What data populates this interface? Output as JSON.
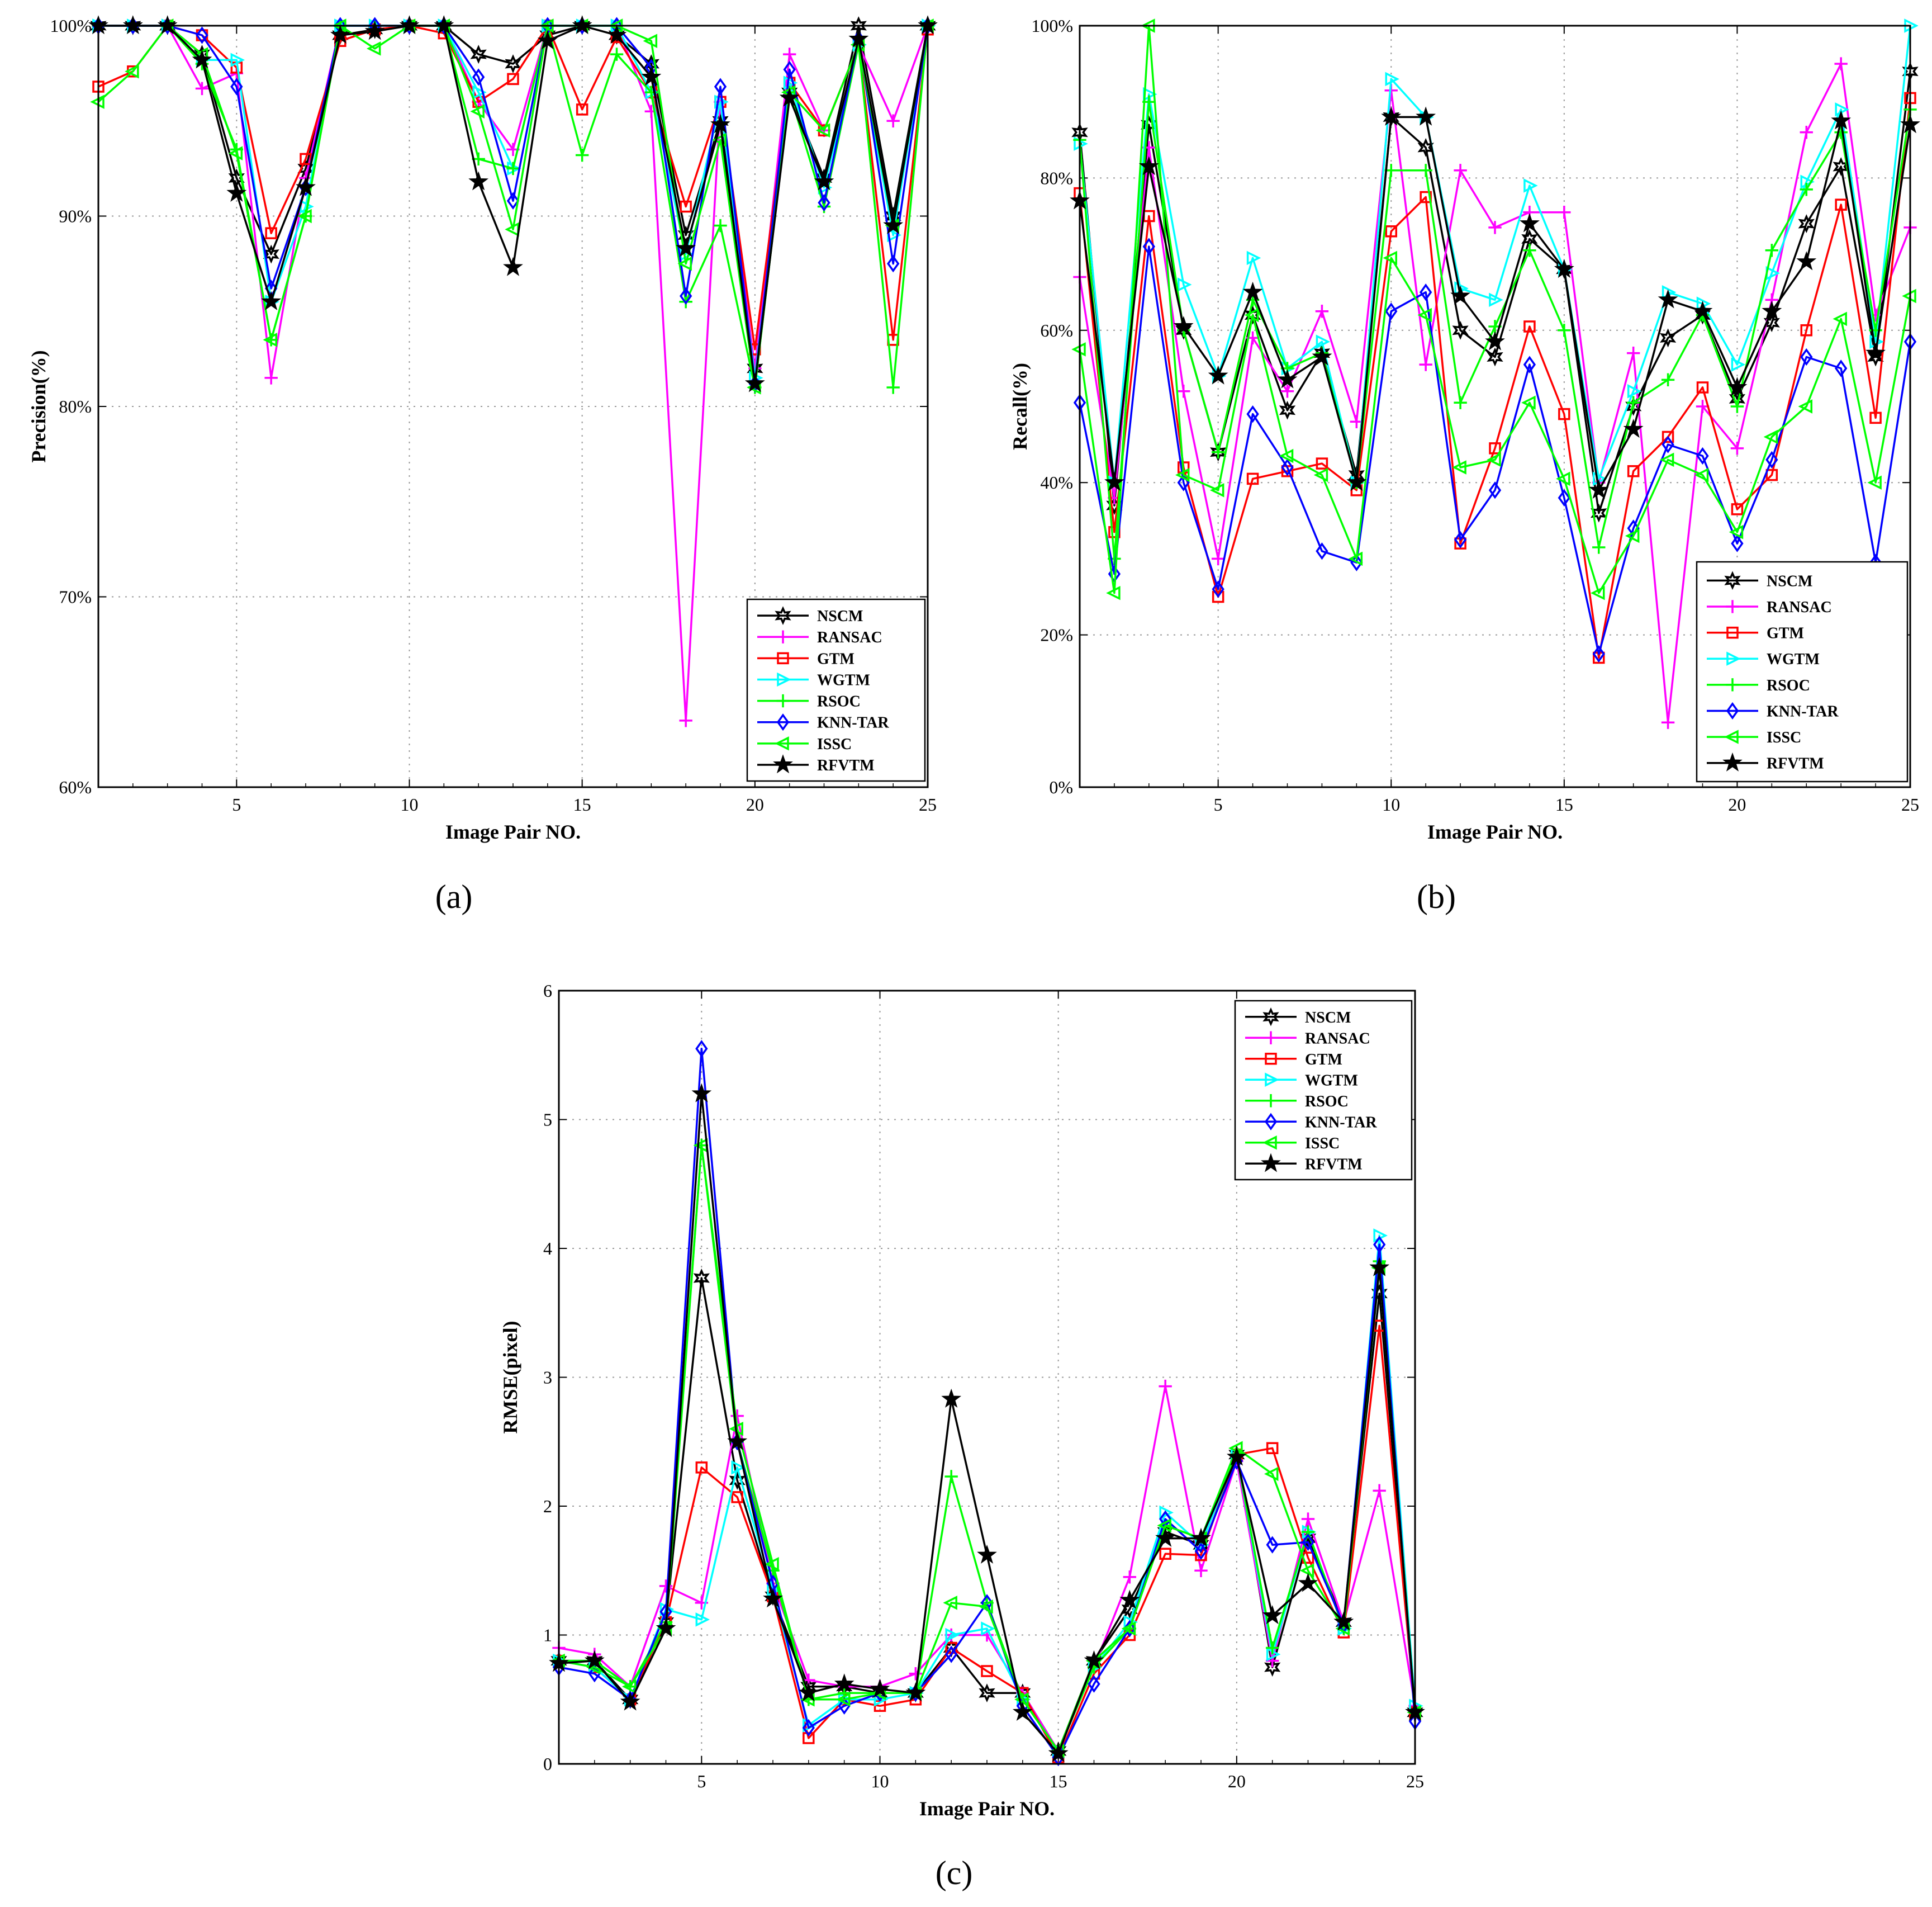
{
  "colors": {
    "NSCM": "#000000",
    "RANSAC": "#ff00ff",
    "GTM": "#ff0000",
    "WGTM": "#00ffff",
    "RSOC": "#00ff00",
    "KNN-TAR": "#0000ff",
    "ISSC": "#00ff00",
    "RFVTM": "#000000"
  },
  "chart_data": [
    {
      "type": "line",
      "panel_label": "(a)",
      "title": "",
      "xlabel": "Image Pair NO.",
      "ylabel": "Precision(%)",
      "xlim": [
        1,
        25
      ],
      "ylim": [
        60,
        100
      ],
      "xticks": [
        5,
        10,
        15,
        20,
        25
      ],
      "yticks": [
        60,
        70,
        80,
        90,
        100
      ],
      "ytick_labels": [
        "60%",
        "70%",
        "80%",
        "90%",
        "100%"
      ],
      "legend_position": "bottom-right",
      "x": [
        1,
        2,
        3,
        4,
        5,
        6,
        7,
        8,
        9,
        10,
        11,
        12,
        13,
        14,
        15,
        16,
        17,
        18,
        19,
        20,
        21,
        22,
        23,
        24,
        25
      ],
      "series": [
        {
          "name": "NSCM",
          "marker": "hexstar",
          "values": [
            100,
            100,
            100,
            98.5,
            92,
            88,
            92.5,
            99.5,
            99.8,
            100,
            100,
            98.5,
            98,
            99.5,
            100,
            99.5,
            98,
            89,
            95,
            82,
            96.5,
            92,
            100,
            90,
            100
          ]
        },
        {
          "name": "RANSAC",
          "marker": "plus",
          "values": [
            100,
            100,
            100,
            96.7,
            97.5,
            81.5,
            92,
            100,
            100,
            100,
            100,
            96,
            93.5,
            100,
            100,
            100,
            95.5,
            63.5,
            96,
            82,
            98.5,
            94.5,
            99,
            95,
            100
          ]
        },
        {
          "name": "GTM",
          "marker": "square",
          "values": [
            96.8,
            97.6,
            100,
            99.5,
            97.8,
            89.1,
            93,
            99.2,
            99.8,
            100,
            99.6,
            96,
            97.2,
            100,
            95.6,
            99.4,
            96.5,
            90.5,
            96,
            83,
            97,
            94.5,
            99,
            83.5,
            99.8
          ]
        },
        {
          "name": "WGTM",
          "marker": "triright",
          "values": [
            100,
            100,
            100,
            98.2,
            98.2,
            85.5,
            90.5,
            100,
            100,
            100,
            100,
            96.5,
            92.5,
            100,
            100,
            100,
            96.5,
            88,
            96,
            81.5,
            97,
            91.5,
            99,
            89,
            100
          ]
        },
        {
          "name": "RSOC",
          "marker": "plus",
          "values": [
            100,
            100,
            100,
            98,
            93.5,
            83.5,
            90,
            100,
            100,
            100,
            100,
            93,
            92.5,
            100,
            93.2,
            98.5,
            96.5,
            85.5,
            89.5,
            81,
            96.5,
            90.5,
            99,
            81,
            100
          ]
        },
        {
          "name": "KNN-TAR",
          "marker": "diamond",
          "values": [
            100,
            100,
            100,
            99.5,
            96.8,
            86.2,
            91.5,
            100,
            100,
            100,
            100,
            97.3,
            90.8,
            100,
            100,
            100,
            97.8,
            85.8,
            96.8,
            81.2,
            97.7,
            90.7,
            99.3,
            87.5,
            100
          ]
        },
        {
          "name": "ISSC",
          "marker": "trileft",
          "values": [
            96,
            97.6,
            100,
            98.5,
            93.3,
            83.5,
            90,
            100,
            98.8,
            100,
            100,
            95.5,
            89.3,
            100,
            100,
            100,
            99.2,
            87.5,
            94,
            81,
            96.5,
            94.5,
            99,
            89.5,
            100
          ]
        },
        {
          "name": "RFVTM",
          "marker": "star",
          "values": [
            100,
            100,
            100,
            98.2,
            91.2,
            85.5,
            91.5,
            99.5,
            99.7,
            100,
            100,
            91.8,
            87.3,
            99.2,
            100,
            99.5,
            97.3,
            88.3,
            94.8,
            81.2,
            96.2,
            91.8,
            99.3,
            89.5,
            100
          ]
        }
      ]
    },
    {
      "type": "line",
      "panel_label": "(b)",
      "title": "",
      "xlabel": "Image Pair NO.",
      "ylabel": "Recall(%)",
      "xlim": [
        1,
        25
      ],
      "ylim": [
        0,
        100
      ],
      "xticks": [
        5,
        10,
        15,
        20,
        25
      ],
      "yticks": [
        0,
        20,
        40,
        60,
        80,
        100
      ],
      "ytick_labels": [
        "0%",
        "20%",
        "40%",
        "60%",
        "80%",
        "100%"
      ],
      "legend_position": "bottom-right",
      "x": [
        1,
        2,
        3,
        4,
        5,
        6,
        7,
        8,
        9,
        10,
        11,
        12,
        13,
        14,
        15,
        16,
        17,
        18,
        19,
        20,
        21,
        22,
        23,
        24,
        25
      ],
      "series": [
        {
          "name": "NSCM",
          "marker": "hexstar",
          "values": [
            86,
            37,
            87,
            60,
            44,
            62,
            49.5,
            57,
            41,
            88,
            84,
            60,
            56.5,
            72,
            68,
            36,
            50,
            59,
            62,
            51,
            61,
            74,
            81.5,
            56.5,
            94
          ]
        },
        {
          "name": "RANSAC",
          "marker": "plus",
          "values": [
            67,
            38,
            84,
            52,
            30,
            59,
            52,
            62.5,
            48,
            91.5,
            55.5,
            81,
            73.5,
            75.5,
            75.5,
            40,
            57,
            8.5,
            50,
            44.5,
            64,
            86,
            95,
            62,
            73.5
          ]
        },
        {
          "name": "GTM",
          "marker": "square",
          "values": [
            78,
            33.5,
            75,
            42,
            25,
            40.5,
            41.5,
            42.5,
            39,
            73,
            77.5,
            32,
            44.5,
            60.5,
            49,
            17,
            41.5,
            46,
            52.5,
            36.5,
            41,
            60,
            76.5,
            48.5,
            90.5
          ]
        },
        {
          "name": "WGTM",
          "marker": "triright",
          "values": [
            84.5,
            40,
            91,
            66,
            54,
            69.5,
            55,
            58.5,
            40,
            93,
            88,
            65.5,
            64,
            79,
            68,
            40.5,
            52,
            65,
            63.5,
            55.5,
            67.5,
            79.5,
            89,
            58.5,
            100
          ]
        },
        {
          "name": "RSOC",
          "marker": "plus",
          "values": [
            85,
            30,
            90,
            60,
            44,
            64,
            55,
            57,
            40,
            81,
            81,
            50.5,
            60.5,
            70.5,
            60,
            31.5,
            50.5,
            53.5,
            62,
            50,
            70.5,
            78.5,
            86,
            60,
            89
          ]
        },
        {
          "name": "KNN-TAR",
          "marker": "diamond",
          "values": [
            50.5,
            28,
            71,
            40,
            26,
            49,
            42,
            31,
            29.5,
            62.5,
            65,
            32.5,
            39,
            55.5,
            38,
            17.5,
            34,
            45,
            43.5,
            32,
            43,
            56.5,
            55,
            29.5,
            58.5
          ]
        },
        {
          "name": "ISSC",
          "marker": "trileft",
          "values": [
            57.5,
            25.5,
            100,
            41,
            39,
            62,
            43.5,
            41,
            30,
            69.5,
            62,
            42,
            43,
            50.5,
            40.5,
            25.5,
            33,
            43,
            41,
            33.5,
            46,
            50,
            61.5,
            40,
            64.5
          ]
        },
        {
          "name": "RFVTM",
          "marker": "star",
          "values": [
            77,
            40,
            81.5,
            60.5,
            54,
            65,
            53.5,
            56.5,
            40,
            88,
            88,
            64.5,
            58.5,
            74,
            68,
            39,
            47,
            64,
            62.5,
            52.5,
            62.5,
            69,
            87.5,
            57,
            87
          ]
        }
      ]
    },
    {
      "type": "line",
      "panel_label": "(c)",
      "title": "",
      "xlabel": "Image Pair NO.",
      "ylabel": "RMSE(pixel)",
      "xlim": [
        1,
        25
      ],
      "ylim": [
        0,
        6
      ],
      "xticks": [
        5,
        10,
        15,
        20,
        25
      ],
      "yticks": [
        0,
        1,
        2,
        3,
        4,
        5,
        6
      ],
      "ytick_labels": [
        "0",
        "1",
        "2",
        "3",
        "4",
        "5",
        "6"
      ],
      "legend_position": "top-right",
      "x": [
        1,
        2,
        3,
        4,
        5,
        6,
        7,
        8,
        9,
        10,
        11,
        12,
        13,
        14,
        15,
        16,
        17,
        18,
        19,
        20,
        21,
        22,
        23,
        24,
        25
      ],
      "series": [
        {
          "name": "NSCM",
          "marker": "hexstar",
          "values": [
            0.8,
            0.8,
            0.5,
            1.1,
            3.77,
            2.2,
            1.3,
            0.6,
            0.6,
            0.55,
            0.55,
            0.9,
            0.55,
            0.55,
            0.1,
            0.8,
            1.2,
            1.8,
            1.7,
            2.4,
            0.75,
            1.75,
            1.1,
            3.65,
            0.4
          ]
        },
        {
          "name": "RANSAC",
          "marker": "plus",
          "values": [
            0.9,
            0.85,
            0.6,
            1.38,
            1.25,
            2.7,
            1.4,
            0.65,
            0.6,
            0.6,
            0.7,
            1.0,
            1.0,
            0.55,
            0.1,
            0.75,
            1.45,
            2.93,
            1.5,
            2.35,
            0.8,
            1.9,
            1.1,
            2.12,
            0.45
          ]
        },
        {
          "name": "GTM",
          "marker": "square",
          "values": [
            0.8,
            0.75,
            0.5,
            1.1,
            2.3,
            2.07,
            1.3,
            0.2,
            0.5,
            0.45,
            0.5,
            0.9,
            0.72,
            0.55,
            0.05,
            0.7,
            1.0,
            1.63,
            1.62,
            2.4,
            2.45,
            1.6,
            1.02,
            3.4,
            0.4
          ]
        },
        {
          "name": "WGTM",
          "marker": "triright",
          "values": [
            0.8,
            0.75,
            0.5,
            1.2,
            1.12,
            2.3,
            1.35,
            0.3,
            0.5,
            0.5,
            0.55,
            1.0,
            1.05,
            0.5,
            0.1,
            0.75,
            1.1,
            1.95,
            1.7,
            2.4,
            0.85,
            1.8,
            1.05,
            4.1,
            0.45
          ]
        },
        {
          "name": "RSOC",
          "marker": "plus",
          "values": [
            0.8,
            0.8,
            0.6,
            1.1,
            4.8,
            2.5,
            1.5,
            0.5,
            0.55,
            0.55,
            0.55,
            2.23,
            1.25,
            0.5,
            0.1,
            0.75,
            1.05,
            1.85,
            1.75,
            2.4,
            0.9,
            1.8,
            1.05,
            3.9,
            0.4
          ]
        },
        {
          "name": "KNN-TAR",
          "marker": "diamond",
          "values": [
            0.75,
            0.7,
            0.5,
            1.18,
            5.55,
            2.5,
            1.4,
            0.28,
            0.45,
            0.55,
            0.55,
            0.85,
            1.25,
            0.45,
            0.05,
            0.62,
            1.05,
            1.9,
            1.65,
            2.35,
            1.7,
            1.72,
            1.08,
            4.03,
            0.33
          ]
        },
        {
          "name": "ISSC",
          "marker": "trileft",
          "values": [
            0.8,
            0.75,
            0.6,
            1.05,
            4.8,
            2.6,
            1.55,
            0.5,
            0.5,
            0.55,
            0.55,
            1.25,
            1.22,
            0.5,
            0.1,
            0.8,
            1.05,
            1.85,
            1.75,
            2.45,
            2.25,
            1.5,
            1.05,
            3.85,
            0.4
          ]
        },
        {
          "name": "RFVTM",
          "marker": "star",
          "values": [
            0.78,
            0.8,
            0.48,
            1.05,
            5.2,
            2.5,
            1.28,
            0.55,
            0.62,
            0.58,
            0.55,
            2.83,
            1.62,
            0.4,
            0.08,
            0.8,
            1.27,
            1.75,
            1.75,
            2.38,
            1.15,
            1.4,
            1.1,
            3.85,
            0.4
          ]
        }
      ]
    }
  ]
}
